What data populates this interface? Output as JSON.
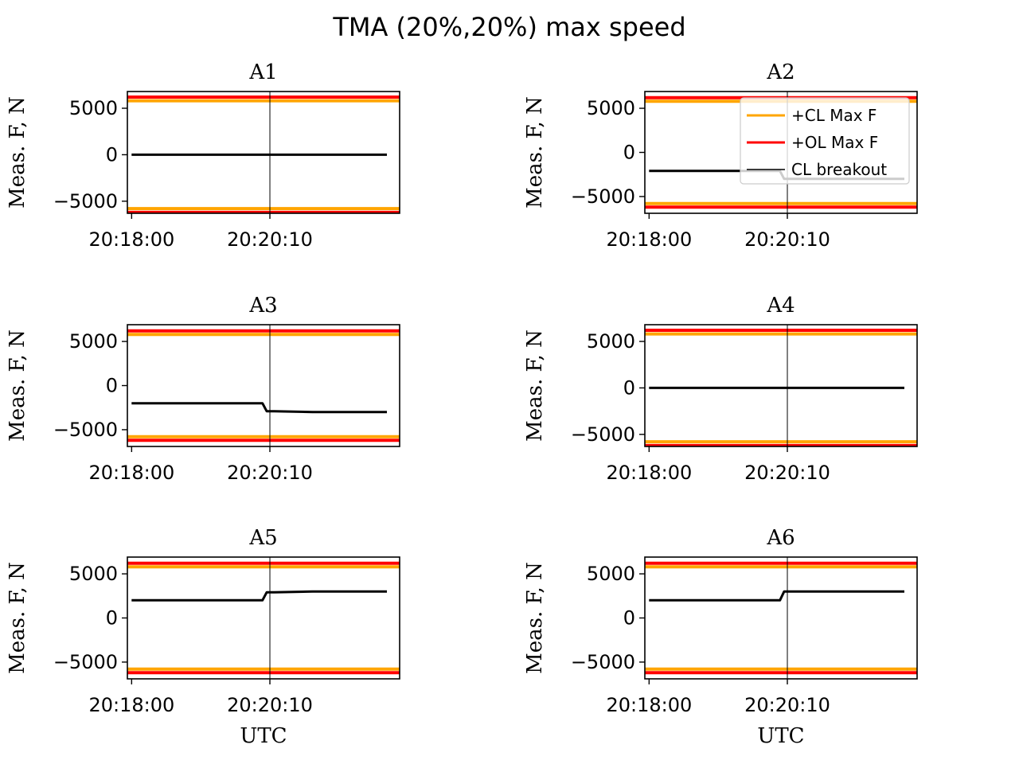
{
  "figure": {
    "suptitle": "TMA (20%,20%) max speed"
  },
  "colors": {
    "cl_max": "#ffa500",
    "ol_max": "#ff0000",
    "measured": "#000000",
    "breakout": "#000000"
  },
  "legend": {
    "location": "upper-right",
    "panel": "A2",
    "entries": [
      {
        "label": "+CL Max F",
        "color": "#ffa500"
      },
      {
        "label": "+OL Max F",
        "color": "#ff0000"
      },
      {
        "label": "CL breakout",
        "color": "#000000"
      }
    ]
  },
  "chart_data": [
    {
      "type": "line",
      "title": "A1",
      "ylabel": "Meas. F, N",
      "xlabel": "",
      "xlim": [
        "20:17:56",
        "20:22:12"
      ],
      "ylim": [
        -6300,
        6800
      ],
      "xticks": [
        "20:18:00",
        "20:20:10"
      ],
      "yticks": [
        -5000,
        0,
        5000
      ],
      "hlines": [
        {
          "name": "+CL Max F",
          "y": 5800
        },
        {
          "name": "+OL Max F",
          "y": 6200
        },
        {
          "y": -5800
        },
        {
          "y": -6200
        }
      ],
      "vline": "20:20:10",
      "series": [
        {
          "x": [
            "20:18:00",
            "20:20:00",
            "20:20:07",
            "20:20:14",
            "20:20:50",
            "20:22:00"
          ],
          "values": [
            0,
            0,
            0,
            0,
            0,
            0
          ]
        }
      ]
    },
    {
      "type": "line",
      "title": "A2",
      "ylabel": "Meas. F, N",
      "xlabel": "",
      "xlim": [
        "20:17:56",
        "20:22:12"
      ],
      "ylim": [
        -6900,
        6900
      ],
      "xticks": [
        "20:18:00",
        "20:20:10"
      ],
      "yticks": [
        -5000,
        0,
        5000
      ],
      "hlines": [
        {
          "name": "+CL Max F",
          "y": 5800
        },
        {
          "name": "+OL Max F",
          "y": 6200
        },
        {
          "y": -5800
        },
        {
          "y": -6200
        }
      ],
      "vline": "20:20:10",
      "series": [
        {
          "x": [
            "20:18:00",
            "20:20:03",
            "20:20:07",
            "20:20:14",
            "20:20:50",
            "20:22:00"
          ],
          "values": [
            -2100,
            -2100,
            -3000,
            -3000,
            -3000,
            -3000
          ]
        }
      ]
    },
    {
      "type": "line",
      "title": "A3",
      "ylabel": "Meas. F, N",
      "xlabel": "",
      "xlim": [
        "20:17:56",
        "20:22:12"
      ],
      "ylim": [
        -6900,
        6900
      ],
      "xticks": [
        "20:18:00",
        "20:20:10"
      ],
      "yticks": [
        -5000,
        0,
        5000
      ],
      "hlines": [
        {
          "name": "+CL Max F",
          "y": 5800
        },
        {
          "name": "+OL Max F",
          "y": 6200
        },
        {
          "y": -5800
        },
        {
          "y": -6200
        }
      ],
      "vline": "20:20:10",
      "series": [
        {
          "x": [
            "20:18:00",
            "20:20:03",
            "20:20:07",
            "20:20:14",
            "20:20:50",
            "20:22:00"
          ],
          "values": [
            -2000,
            -2000,
            -2900,
            -2900,
            -3000,
            -3000
          ]
        }
      ]
    },
    {
      "type": "line",
      "title": "A4",
      "ylabel": "Meas. F, N",
      "xlabel": "",
      "xlim": [
        "20:17:56",
        "20:22:12"
      ],
      "ylim": [
        -6300,
        6800
      ],
      "xticks": [
        "20:18:00",
        "20:20:10"
      ],
      "yticks": [
        -5000,
        0,
        5000
      ],
      "hlines": [
        {
          "name": "+CL Max F",
          "y": 5800
        },
        {
          "name": "+OL Max F",
          "y": 6200
        },
        {
          "y": -5800
        },
        {
          "y": -6200
        }
      ],
      "vline": "20:20:10",
      "series": [
        {
          "x": [
            "20:18:00",
            "20:20:00",
            "20:20:07",
            "20:20:14",
            "20:20:50",
            "20:22:00"
          ],
          "values": [
            0,
            0,
            0,
            0,
            0,
            0
          ]
        }
      ]
    },
    {
      "type": "line",
      "title": "A5",
      "ylabel": "Meas. F, N",
      "xlabel": "UTC",
      "xlim": [
        "20:17:56",
        "20:22:12"
      ],
      "ylim": [
        -6900,
        6900
      ],
      "xticks": [
        "20:18:00",
        "20:20:10"
      ],
      "yticks": [
        -5000,
        0,
        5000
      ],
      "hlines": [
        {
          "name": "+CL Max F",
          "y": 5800
        },
        {
          "name": "+OL Max F",
          "y": 6200
        },
        {
          "y": -5800
        },
        {
          "y": -6200
        }
      ],
      "vline": "20:20:10",
      "series": [
        {
          "x": [
            "20:18:00",
            "20:20:03",
            "20:20:07",
            "20:20:14",
            "20:20:50",
            "20:22:00"
          ],
          "values": [
            2000,
            2000,
            2900,
            2900,
            3000,
            3000
          ]
        }
      ]
    },
    {
      "type": "line",
      "title": "A6",
      "ylabel": "Meas. F, N",
      "xlabel": "UTC",
      "xlim": [
        "20:17:56",
        "20:22:12"
      ],
      "ylim": [
        -6900,
        6900
      ],
      "xticks": [
        "20:18:00",
        "20:20:10"
      ],
      "yticks": [
        -5000,
        0,
        5000
      ],
      "hlines": [
        {
          "name": "+CL Max F",
          "y": 5800
        },
        {
          "name": "+OL Max F",
          "y": 6200
        },
        {
          "y": -5800
        },
        {
          "y": -6200
        }
      ],
      "vline": "20:20:10",
      "series": [
        {
          "x": [
            "20:18:00",
            "20:20:03",
            "20:20:07",
            "20:20:14",
            "20:20:50",
            "20:22:00"
          ],
          "values": [
            2000,
            2000,
            3000,
            3000,
            3000,
            3000
          ]
        }
      ]
    }
  ]
}
